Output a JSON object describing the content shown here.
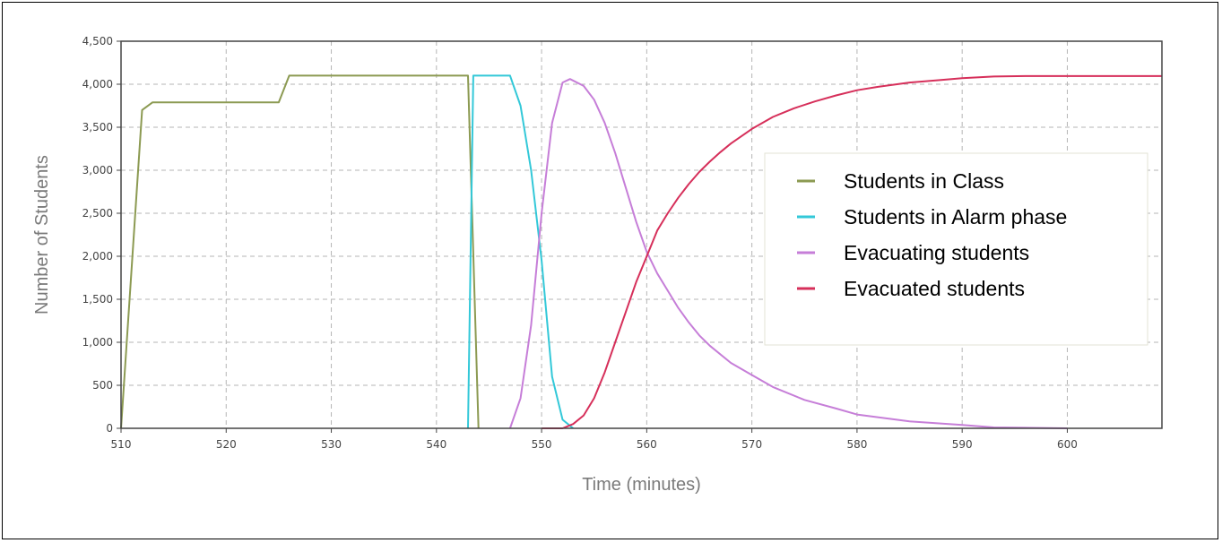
{
  "chart_data": {
    "type": "line",
    "xlabel": "Time (minutes)",
    "ylabel": "Number of Students",
    "xlim": [
      510,
      609
    ],
    "ylim": [
      0,
      4500
    ],
    "x_ticks": [
      510,
      520,
      530,
      540,
      550,
      560,
      570,
      580,
      590,
      600
    ],
    "x_tick_labels": [
      "510",
      "520",
      "530",
      "540",
      "550",
      "560",
      "570",
      "580",
      "590",
      "600"
    ],
    "y_ticks": [
      0,
      500,
      1000,
      1500,
      2000,
      2500,
      3000,
      3500,
      4000,
      4500
    ],
    "y_tick_labels": [
      "0",
      "500",
      "1,000",
      "1,500",
      "2,000",
      "2,500",
      "3,000",
      "3,500",
      "4,000",
      "4,500"
    ],
    "grid": true,
    "legend_position": "right",
    "series": [
      {
        "name": "Students in Class",
        "color": "#8c9a52",
        "points": [
          [
            510,
            0
          ],
          [
            512,
            3700
          ],
          [
            513,
            3790
          ],
          [
            525,
            3790
          ],
          [
            526,
            4100
          ],
          [
            543,
            4100
          ],
          [
            544,
            0
          ]
        ]
      },
      {
        "name": "Students in Alarm phase",
        "color": "#33c8d8",
        "points": [
          [
            543,
            0
          ],
          [
            543.5,
            4100
          ],
          [
            547,
            4100
          ],
          [
            548,
            3750
          ],
          [
            549,
            3000
          ],
          [
            550,
            1950
          ],
          [
            551,
            600
          ],
          [
            552,
            100
          ],
          [
            553,
            0
          ]
        ]
      },
      {
        "name": "Evacuating students",
        "color": "#c67ed8",
        "points": [
          [
            547,
            0
          ],
          [
            548,
            350
          ],
          [
            549,
            1200
          ],
          [
            550,
            2500
          ],
          [
            551,
            3550
          ],
          [
            552,
            4020
          ],
          [
            552.7,
            4060
          ],
          [
            554,
            3980
          ],
          [
            555,
            3820
          ],
          [
            556,
            3550
          ],
          [
            557,
            3200
          ],
          [
            558,
            2800
          ],
          [
            559,
            2400
          ],
          [
            560,
            2050
          ],
          [
            561,
            1800
          ],
          [
            562,
            1600
          ],
          [
            563,
            1400
          ],
          [
            564,
            1230
          ],
          [
            565,
            1080
          ],
          [
            566,
            960
          ],
          [
            568,
            760
          ],
          [
            570,
            620
          ],
          [
            572,
            480
          ],
          [
            575,
            330
          ],
          [
            578,
            230
          ],
          [
            580,
            160
          ],
          [
            585,
            80
          ],
          [
            590,
            40
          ],
          [
            593,
            10
          ],
          [
            600,
            0
          ]
        ]
      },
      {
        "name": "Evacuated students",
        "color": "#d62f5a",
        "points": [
          [
            550,
            0
          ],
          [
            552,
            0
          ],
          [
            553,
            50
          ],
          [
            554,
            150
          ],
          [
            555,
            350
          ],
          [
            556,
            650
          ],
          [
            557,
            1000
          ],
          [
            558,
            1350
          ],
          [
            559,
            1700
          ],
          [
            560,
            2000
          ],
          [
            561,
            2300
          ],
          [
            562,
            2500
          ],
          [
            563,
            2680
          ],
          [
            564,
            2840
          ],
          [
            565,
            2980
          ],
          [
            566,
            3100
          ],
          [
            567,
            3210
          ],
          [
            568,
            3310
          ],
          [
            570,
            3480
          ],
          [
            572,
            3620
          ],
          [
            574,
            3720
          ],
          [
            576,
            3800
          ],
          [
            578,
            3870
          ],
          [
            580,
            3930
          ],
          [
            582,
            3970
          ],
          [
            585,
            4020
          ],
          [
            588,
            4050
          ],
          [
            590,
            4070
          ],
          [
            593,
            4090
          ],
          [
            596,
            4095
          ],
          [
            609,
            4095
          ]
        ]
      }
    ]
  }
}
